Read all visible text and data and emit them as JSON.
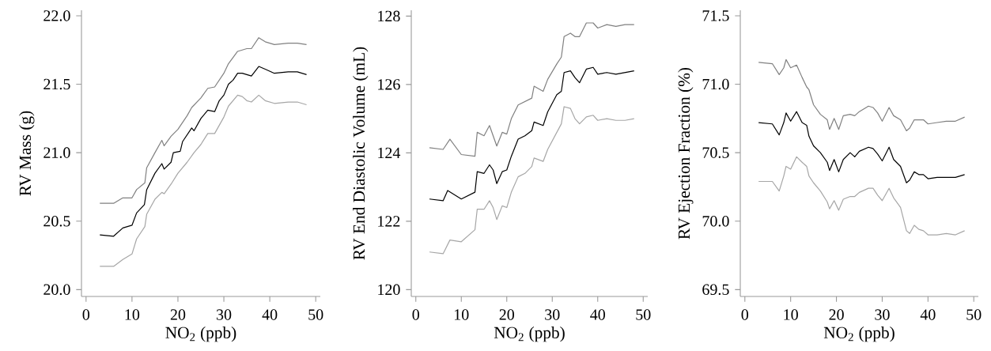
{
  "chart_data": [
    {
      "type": "line",
      "xlabel": "NO$_{2}$ (ppb)",
      "ylabel": "RV Mass (g)",
      "xlim": [
        -1,
        51
      ],
      "ylim": [
        19.95,
        22.04
      ],
      "xticks": [
        0,
        10,
        20,
        30,
        40,
        50
      ],
      "yticks": [
        {
          "value": 20,
          "label": "20.0"
        },
        20.5,
        {
          "value": 21,
          "label": "21.0"
        },
        21.5,
        {
          "value": 22,
          "label": "22.0"
        }
      ],
      "series": [
        {
          "color": "#808080",
          "x": [
            3,
            6,
            8,
            10,
            11,
            12.8,
            13.2,
            15,
            16.5,
            17,
            18.5,
            20,
            22,
            23,
            25,
            26.5,
            28,
            30,
            31,
            33,
            35,
            36,
            37.6,
            39,
            41,
            44,
            46,
            48
          ],
          "values": [
            20.63,
            20.63,
            20.67,
            20.67,
            20.73,
            20.78,
            20.89,
            21.0,
            21.09,
            21.05,
            21.12,
            21.17,
            21.27,
            21.33,
            21.4,
            21.47,
            21.48,
            21.58,
            21.65,
            21.74,
            21.76,
            21.76,
            21.84,
            21.81,
            21.79,
            21.8,
            21.8,
            21.79
          ]
        },
        {
          "color": "#000000",
          "x": [
            3,
            6,
            8,
            10,
            11,
            12.7,
            13.2,
            15,
            16.5,
            17,
            18.5,
            19,
            20.5,
            21,
            23,
            23.5,
            25,
            26.5,
            28,
            29,
            30,
            31,
            32,
            33,
            34,
            35,
            36,
            37.6,
            39,
            41,
            44,
            46,
            48
          ],
          "values": [
            20.4,
            20.39,
            20.45,
            20.47,
            20.56,
            20.62,
            20.73,
            20.85,
            20.92,
            20.88,
            20.93,
            21.0,
            21.01,
            21.08,
            21.18,
            21.16,
            21.25,
            21.31,
            21.3,
            21.38,
            21.42,
            21.5,
            21.53,
            21.58,
            21.58,
            21.57,
            21.56,
            21.63,
            21.61,
            21.58,
            21.59,
            21.59,
            21.57
          ]
        },
        {
          "color": "#a6a6a6",
          "x": [
            3,
            6,
            8,
            10,
            11,
            12.8,
            13.2,
            15,
            16.5,
            17,
            18.5,
            20,
            22,
            23.5,
            25,
            26.5,
            28,
            30,
            31,
            33,
            34,
            35,
            36,
            37.6,
            39,
            41,
            44,
            46,
            48
          ],
          "values": [
            20.17,
            20.17,
            20.22,
            20.26,
            20.37,
            20.46,
            20.55,
            20.66,
            20.71,
            20.7,
            20.77,
            20.85,
            20.93,
            21.0,
            21.06,
            21.14,
            21.14,
            21.26,
            21.34,
            21.42,
            21.41,
            21.38,
            21.37,
            21.42,
            21.38,
            21.36,
            21.37,
            21.37,
            21.35
          ]
        }
      ]
    },
    {
      "type": "line",
      "xlabel": "NO$_{2}$ (ppb)",
      "ylabel": "RV End Diastolic Volume (mL)",
      "xlim": [
        -1,
        51
      ],
      "ylim": [
        119.8,
        128.17
      ],
      "xticks": [
        0,
        10,
        20,
        30,
        40,
        50
      ],
      "yticks": [
        120,
        122,
        124,
        126,
        128
      ],
      "series": [
        {
          "color": "#808080",
          "x": [
            3,
            6,
            7.5,
            10,
            13,
            13.5,
            15,
            16.2,
            17,
            17.8,
            19,
            20,
            21,
            22.5,
            24,
            25.5,
            26,
            28,
            29,
            31,
            32,
            32.6,
            34,
            35,
            36,
            37.5,
            39,
            40,
            42,
            44,
            46,
            48
          ],
          "values": [
            124.15,
            124.1,
            124.4,
            123.95,
            123.9,
            124.6,
            124.5,
            124.8,
            124.5,
            124.2,
            124.6,
            124.55,
            125.0,
            125.4,
            125.5,
            125.6,
            125.95,
            125.8,
            126.15,
            126.6,
            126.8,
            127.4,
            127.5,
            127.4,
            127.4,
            127.8,
            127.8,
            127.65,
            127.75,
            127.7,
            127.75,
            127.75
          ]
        },
        {
          "color": "#000000",
          "x": [
            3,
            6,
            7,
            10,
            13,
            13.5,
            15,
            16.2,
            17,
            17.8,
            19,
            20,
            21,
            22.5,
            24,
            25.5,
            26,
            28,
            29,
            31,
            32,
            32.6,
            34,
            35,
            36,
            37.5,
            39,
            40,
            42,
            44,
            46,
            48
          ],
          "values": [
            122.65,
            122.6,
            122.9,
            122.65,
            122.85,
            123.45,
            123.4,
            123.65,
            123.5,
            123.1,
            123.45,
            123.5,
            123.9,
            124.4,
            124.5,
            124.65,
            124.9,
            124.8,
            125.2,
            125.7,
            125.8,
            126.35,
            126.4,
            126.2,
            126.05,
            126.45,
            126.5,
            126.3,
            126.35,
            126.3,
            126.35,
            126.4
          ]
        },
        {
          "color": "#a6a6a6",
          "x": [
            3,
            6,
            7.5,
            10,
            13,
            13.5,
            15,
            16.2,
            17,
            17.8,
            19,
            20,
            21,
            22.5,
            24,
            25.5,
            26,
            28,
            29,
            31,
            32,
            32.6,
            34,
            35,
            36,
            37.5,
            39,
            40,
            42,
            44,
            46,
            48
          ],
          "values": [
            121.1,
            121.05,
            121.45,
            121.4,
            121.75,
            122.35,
            122.35,
            122.6,
            122.4,
            122.05,
            122.45,
            122.4,
            122.85,
            123.3,
            123.4,
            123.6,
            123.85,
            123.75,
            124.1,
            124.6,
            124.85,
            125.35,
            125.3,
            125.0,
            124.85,
            125.05,
            125.1,
            124.95,
            125.0,
            124.95,
            124.95,
            125.0
          ]
        }
      ]
    },
    {
      "type": "line",
      "xlabel": "NO$_{2}$ (ppb)",
      "ylabel": "RV Ejection Fraction (%)",
      "xlim": [
        -1,
        51
      ],
      "ylim": [
        69.45,
        71.54
      ],
      "xticks": [
        0,
        10,
        20,
        30,
        40,
        50
      ],
      "yticks": [
        69.5,
        {
          "value": 70,
          "label": "70.0"
        },
        70.5,
        {
          "value": 71,
          "label": "71.0"
        },
        71.5
      ],
      "series": [
        {
          "color": "#808080",
          "x": [
            3,
            6,
            7.5,
            8.5,
            9,
            10,
            11.3,
            12.5,
            13.5,
            14,
            15,
            16.5,
            18,
            18.5,
            19.5,
            20.5,
            21.5,
            23,
            24,
            25,
            27,
            28,
            29,
            30,
            31.5,
            32.5,
            34,
            35.3,
            36,
            37,
            38,
            39,
            40,
            42,
            44,
            46,
            48
          ],
          "values": [
            71.16,
            71.15,
            71.07,
            71.12,
            71.18,
            71.12,
            71.14,
            71.05,
            70.98,
            70.96,
            70.85,
            70.78,
            70.74,
            70.67,
            70.75,
            70.67,
            70.77,
            70.78,
            70.77,
            70.8,
            70.84,
            70.83,
            70.79,
            70.73,
            70.83,
            70.77,
            70.74,
            70.66,
            70.68,
            70.74,
            70.74,
            70.74,
            70.71,
            70.72,
            70.73,
            70.73,
            70.76
          ]
        },
        {
          "color": "#000000",
          "x": [
            3,
            6,
            7.5,
            8.5,
            9,
            10,
            11.3,
            12.5,
            13.5,
            14,
            15,
            16.5,
            18,
            18.5,
            19.5,
            20.5,
            21.5,
            23,
            24,
            25,
            27,
            28,
            29,
            30,
            31.5,
            32.5,
            34,
            35.3,
            36,
            37,
            38,
            39,
            40,
            42,
            44,
            46,
            48
          ],
          "values": [
            70.72,
            70.71,
            70.63,
            70.72,
            70.79,
            70.73,
            70.8,
            70.72,
            70.7,
            70.62,
            70.55,
            70.5,
            70.43,
            70.37,
            70.45,
            70.36,
            70.45,
            70.5,
            70.47,
            70.51,
            70.54,
            70.53,
            70.49,
            70.44,
            70.54,
            70.45,
            70.4,
            70.28,
            70.3,
            70.36,
            70.34,
            70.34,
            70.31,
            70.32,
            70.32,
            70.32,
            70.34
          ]
        },
        {
          "color": "#a6a6a6",
          "x": [
            3,
            6,
            7.5,
            8.5,
            9,
            10,
            11.3,
            12.5,
            13.5,
            14,
            15,
            16.5,
            18,
            18.5,
            19.5,
            20.5,
            21.5,
            23,
            24,
            25,
            27,
            28,
            29,
            30,
            31.5,
            32.5,
            34,
            35.3,
            36,
            37,
            38,
            39,
            40,
            42,
            44,
            46,
            48
          ],
          "values": [
            70.29,
            70.29,
            70.22,
            70.33,
            70.4,
            70.38,
            70.47,
            70.43,
            70.4,
            70.33,
            70.28,
            70.22,
            70.14,
            70.09,
            70.15,
            70.08,
            70.16,
            70.18,
            70.18,
            70.21,
            70.24,
            70.24,
            70.19,
            70.15,
            70.24,
            70.17,
            70.1,
            69.93,
            69.91,
            69.97,
            69.94,
            69.93,
            69.9,
            69.9,
            69.91,
            69.9,
            69.93
          ]
        }
      ]
    }
  ]
}
